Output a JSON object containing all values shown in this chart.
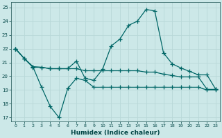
{
  "xlabel": "Humidex (Indice chaleur)",
  "bg_color": "#cce8e8",
  "grid_color": "#b8d8d8",
  "line_color": "#006666",
  "xlim": [
    -0.5,
    23.5
  ],
  "ylim": [
    16.7,
    25.4
  ],
  "yticks": [
    17,
    18,
    19,
    20,
    21,
    22,
    23,
    24,
    25
  ],
  "xticks": [
    0,
    1,
    2,
    3,
    4,
    5,
    6,
    7,
    8,
    9,
    10,
    11,
    12,
    13,
    14,
    15,
    16,
    17,
    18,
    19,
    20,
    21,
    22,
    23
  ],
  "series": [
    [
      22.0,
      21.3,
      20.7,
      19.2,
      17.8,
      17.0,
      19.1,
      19.85,
      19.7,
      19.2,
      19.2,
      19.2,
      19.2,
      19.2,
      19.2,
      19.2,
      19.2,
      19.2,
      19.2,
      19.2,
      19.2,
      19.2,
      19.0,
      19.0
    ],
    [
      22.0,
      21.3,
      20.7,
      20.65,
      20.55,
      20.55,
      20.55,
      20.55,
      20.4,
      20.4,
      20.4,
      20.4,
      20.4,
      20.4,
      20.4,
      20.3,
      20.3,
      20.15,
      20.05,
      19.95,
      19.95,
      19.95,
      19.05,
      19.05
    ],
    [
      22.0,
      21.3,
      20.65,
      20.65,
      20.55,
      20.55,
      20.55,
      21.1,
      19.85,
      19.7,
      20.5,
      22.2,
      22.7,
      23.7,
      24.0,
      24.85,
      24.75,
      21.7,
      20.9,
      20.6,
      20.35,
      20.1,
      20.1,
      19.05
    ]
  ]
}
